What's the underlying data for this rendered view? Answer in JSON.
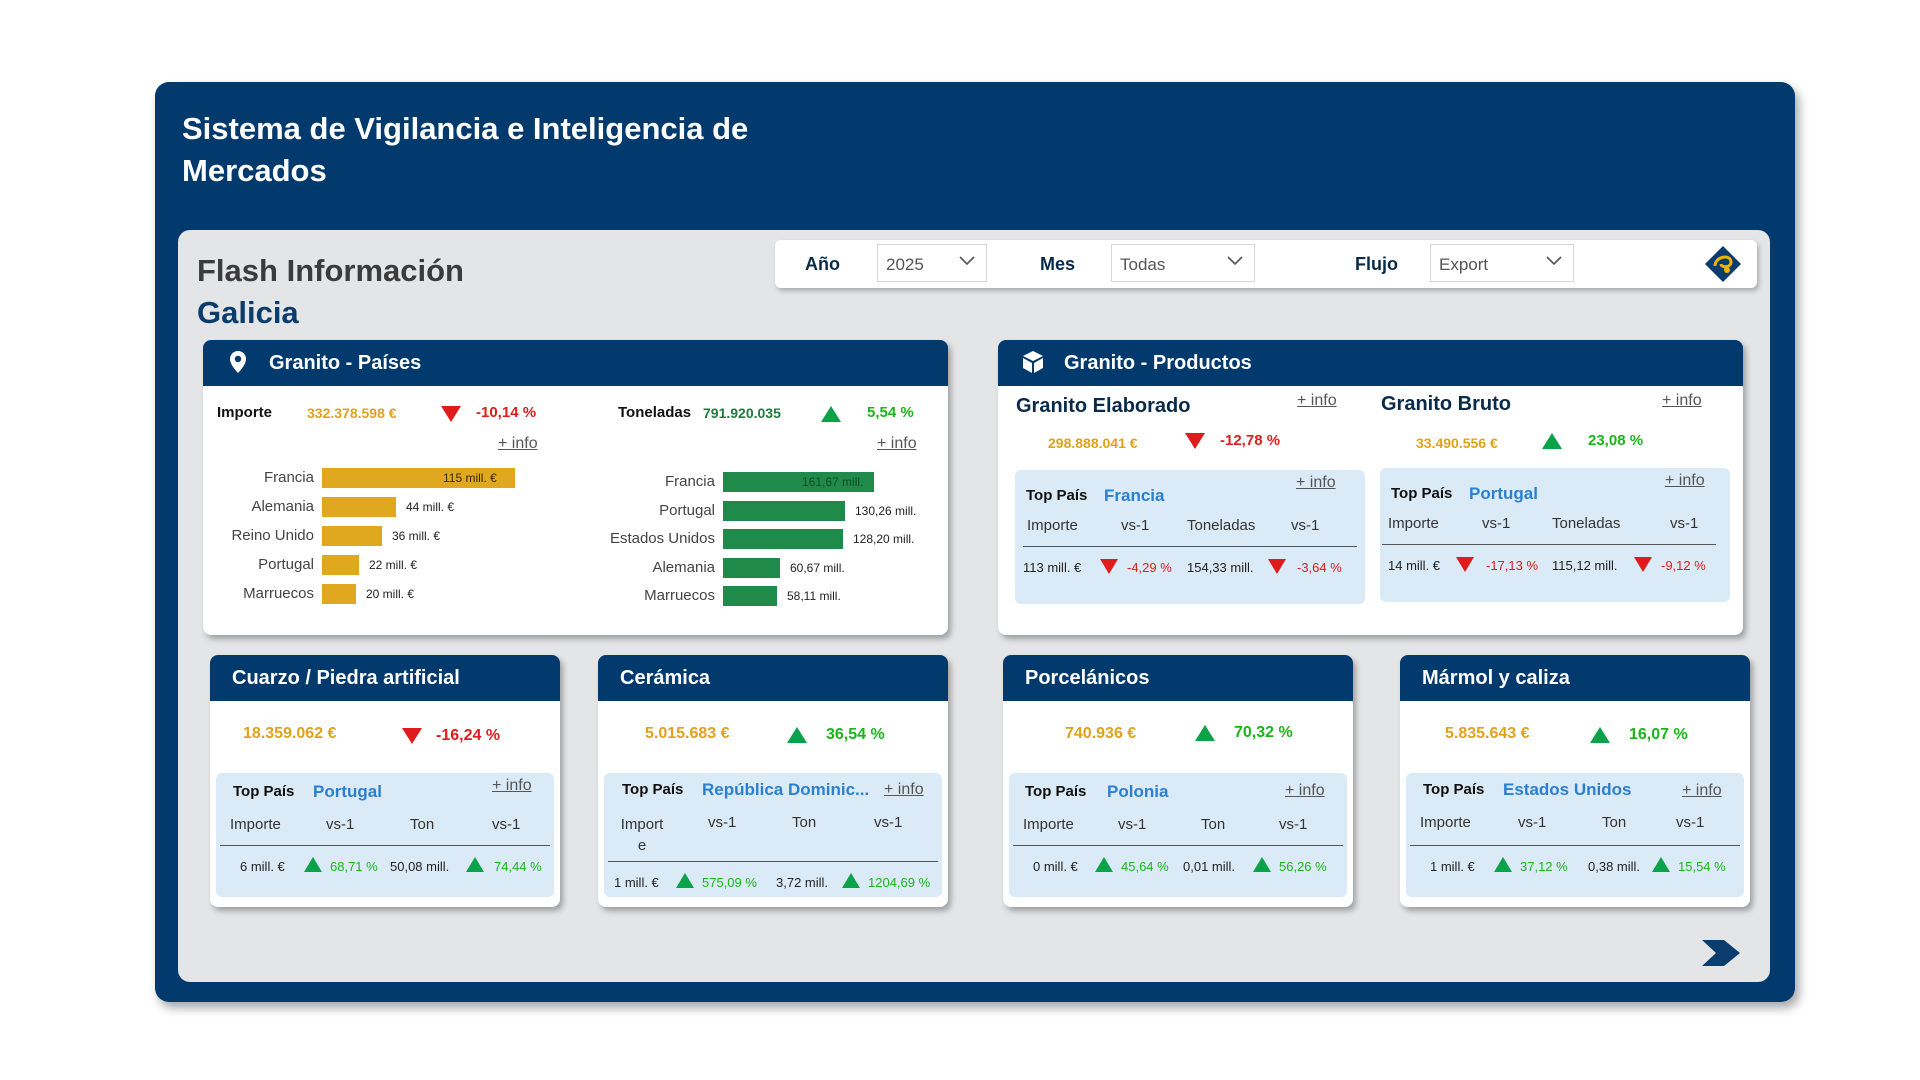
{
  "app": {
    "title": "Sistema de Vigilancia e Inteligencia de Mercados"
  },
  "page": {
    "title_line1": "Flash Información",
    "title_line2": "Galicia"
  },
  "filters": {
    "year_label": "Año",
    "year_value": "2025",
    "month_label": "Mes",
    "month_value": "Todas",
    "flow_label": "Flujo",
    "flow_value": "Export"
  },
  "more_info": "+ info",
  "top_pais_label": "Top País",
  "granito_paises": {
    "title": "Granito - Países",
    "importe_label": "Importe",
    "importe_value": "332.378.598 €",
    "importe_pct": "-10,14 %",
    "toneladas_label": "Toneladas",
    "toneladas_value": "791.920.035",
    "toneladas_pct": "5,54 %",
    "importe_bars": [
      {
        "country": "Francia",
        "value": 115,
        "label": "115 mill. €"
      },
      {
        "country": "Alemania",
        "value": 44,
        "label": "44 mill. €"
      },
      {
        "country": "Reino Unido",
        "value": 36,
        "label": "36 mill. €"
      },
      {
        "country": "Portugal",
        "value": 22,
        "label": "22 mill. €"
      },
      {
        "country": "Marruecos",
        "value": 20,
        "label": "20 mill. €"
      }
    ],
    "toneladas_bars": [
      {
        "country": "Francia",
        "value": 161.67,
        "label": "161,67 mill."
      },
      {
        "country": "Portugal",
        "value": 130.26,
        "label": "130,26 mill."
      },
      {
        "country": "Estados Unidos",
        "value": 128.2,
        "label": "128,20 mill."
      },
      {
        "country": "Alemania",
        "value": 60.67,
        "label": "60,67 mill."
      },
      {
        "country": "Marruecos",
        "value": 58.11,
        "label": "58,11 mill."
      }
    ],
    "colors": {
      "importe": "#e0a81e",
      "toneladas": "#1f8a49"
    }
  },
  "granito_productos": {
    "title": "Granito - Productos",
    "elaborado": {
      "title": "Granito Elaborado",
      "value": "298.888.041 €",
      "pct": "-12,78 %",
      "top_country": "Francia",
      "cols": [
        "Importe",
        "vs-1",
        "Toneladas",
        "vs-1"
      ],
      "row": [
        "113 mill. €",
        "-4,29 %",
        "154,33 mill.",
        "-3,64 %"
      ]
    },
    "bruto": {
      "title": "Granito Bruto",
      "value": "33.490.556 €",
      "pct": "23,08 %",
      "top_country": "Portugal",
      "cols": [
        "Importe",
        "vs-1",
        "Toneladas",
        "vs-1"
      ],
      "row": [
        "14 mill. €",
        "-17,13 %",
        "115,12 mill.",
        "-9,12 %"
      ]
    }
  },
  "cuarzo": {
    "title": "Cuarzo / Piedra artificial",
    "value": "18.359.062 €",
    "pct": "-16,24 %",
    "top_country": "Portugal",
    "cols": [
      "Importe",
      "vs-1",
      "Ton",
      "vs-1"
    ],
    "row": [
      "6 mill. €",
      "68,71 %",
      "50,08 mill.",
      "74,44 %"
    ]
  },
  "ceramica": {
    "title": "Cerámica",
    "value": "5.015.683 €",
    "pct": "36,54 %",
    "top_country": "República Dominic...",
    "cols": [
      "Import e",
      "vs-1",
      "Ton",
      "vs-1"
    ],
    "row": [
      "1 mill. €",
      "575,09 %",
      "3,72 mill.",
      "1204,69 %"
    ]
  },
  "porcelanicos": {
    "title": "Porcelánicos",
    "value": "740.936 €",
    "pct": "70,32 %",
    "top_country": "Polonia",
    "cols": [
      "Importe",
      "vs-1",
      "Ton",
      "vs-1"
    ],
    "row": [
      "0 mill. €",
      "45,64 %",
      "0,01 mill.",
      "56,26 %"
    ]
  },
  "marmol": {
    "title": "Mármol y caliza",
    "value": "5.835.643 €",
    "pct": "16,07 %",
    "top_country": "Estados Unidos",
    "cols": [
      "Importe",
      "vs-1",
      "Ton",
      "vs-1"
    ],
    "row": [
      "1 mill. €",
      "37,12 %",
      "0,38 mill.",
      "15,54 %"
    ]
  },
  "icons": {
    "location": "map-pin-icon",
    "products": "box-icon",
    "next": "chevron-right-icon",
    "logo": "brand-logo"
  }
}
